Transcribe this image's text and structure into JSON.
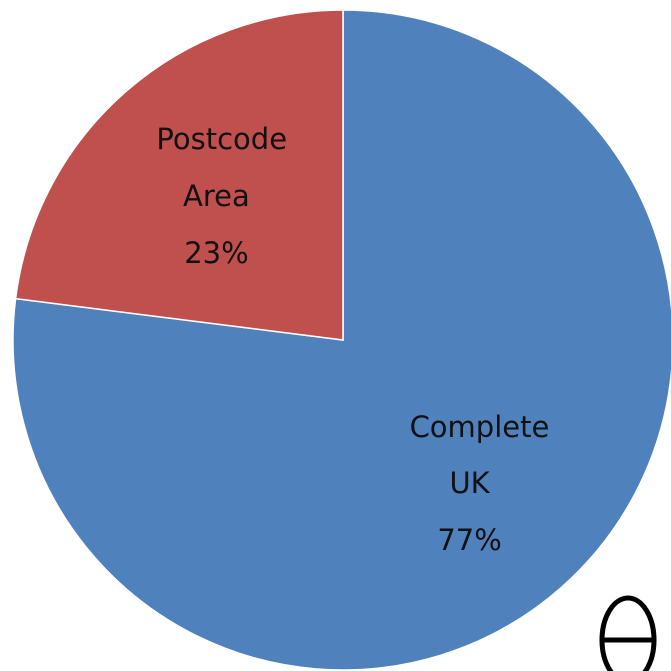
{
  "chart_data": {
    "type": "pie",
    "categories": [
      "Complete UK",
      "Postcode Area"
    ],
    "values": [
      77,
      23
    ],
    "value_labels": [
      "77%",
      "23%"
    ],
    "colors": [
      "#4f81bd",
      "#c0504d"
    ],
    "start_angle": 0,
    "direction": "clockwise"
  }
}
